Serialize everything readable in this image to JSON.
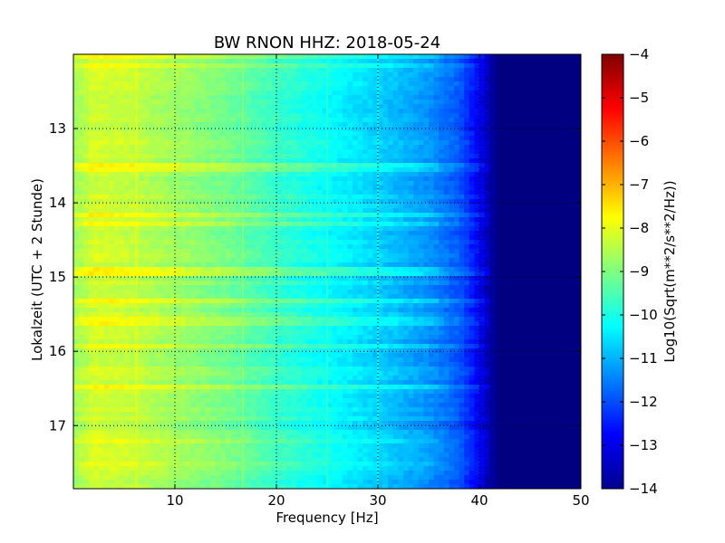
{
  "chart_data": {
    "type": "heatmap",
    "title": "BW RNON HHZ: 2018-05-24",
    "xlabel": "Frequency [Hz]",
    "ylabel": "Lokalzeit (UTC + 2 Stunde)",
    "colorbar_label": "Log10(Sqrt(m**2/s**2/Hz))",
    "colormap": "jet",
    "xlim": [
      0,
      50
    ],
    "ylim": [
      17.85,
      12.0
    ],
    "y_inverted": true,
    "clim": [
      -14,
      -4
    ],
    "grid": true,
    "x_ticks": [
      10,
      20,
      30,
      40,
      50
    ],
    "x_tick_labels": [
      "10",
      "20",
      "30",
      "40",
      "50"
    ],
    "y_ticks": [
      13,
      14,
      15,
      16,
      17
    ],
    "y_tick_labels": [
      "13",
      "14",
      "15",
      "16",
      "17"
    ],
    "colorbar_ticks": [
      -4,
      -5,
      -6,
      -7,
      -8,
      -9,
      -10,
      -11,
      -12,
      -13,
      -14
    ],
    "colorbar_tick_labels": [
      "−4",
      "−5",
      "−6",
      "−7",
      "−8",
      "−9",
      "−10",
      "−11",
      "−12",
      "−13",
      "−14"
    ],
    "frequency_profile": {
      "frequency_hz": [
        0,
        2,
        5,
        10,
        15,
        20,
        25,
        30,
        35,
        38,
        40,
        41,
        42,
        50
      ],
      "log10_psd": [
        -8.7,
        -8.2,
        -8.3,
        -8.7,
        -9.1,
        -9.7,
        -10.2,
        -10.7,
        -11.3,
        -11.9,
        -12.8,
        -13.6,
        -14.0,
        -14.0
      ]
    },
    "time_bands": [
      {
        "time": 12.05,
        "level_offset": 0.5
      },
      {
        "time": 12.15,
        "level_offset": 0.4
      },
      {
        "time": 13.5,
        "level_offset": 0.6
      },
      {
        "time": 13.55,
        "level_offset": 0.5
      },
      {
        "time": 14.15,
        "level_offset": 0.5
      },
      {
        "time": 14.3,
        "level_offset": 0.6
      },
      {
        "time": 14.9,
        "level_offset": 0.7
      },
      {
        "time": 14.95,
        "level_offset": 0.6
      },
      {
        "time": 15.3,
        "level_offset": 0.5
      },
      {
        "time": 15.6,
        "level_offset": 0.5
      },
      {
        "time": 15.95,
        "level_offset": 0.4
      },
      {
        "time": 16.5,
        "level_offset": 0.5
      },
      {
        "time": 17.2,
        "level_offset": 0.5
      },
      {
        "time": 17.5,
        "level_offset": 0.4
      }
    ],
    "spectral_lines_hz": [
      6.2,
      16.7,
      25.0,
      30.0
    ]
  }
}
